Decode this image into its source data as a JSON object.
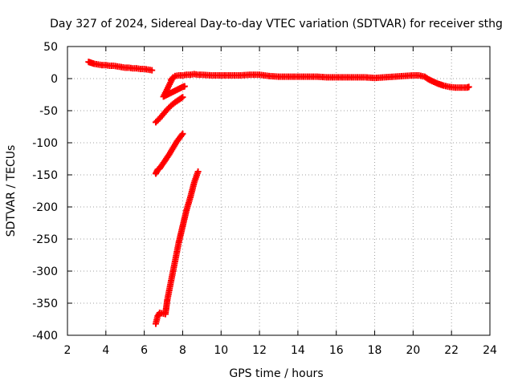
{
  "chart_data": {
    "type": "scatter",
    "title": "Day 327 of 2024, Sidereal Day-to-day VTEC variation (SDTVAR) for receiver sthg",
    "xlabel": "GPS time / hours",
    "ylabel": "SDTVAR / TECUs",
    "xlim": [
      2,
      24
    ],
    "ylim": [
      -400,
      50
    ],
    "xticks": [
      2,
      4,
      6,
      8,
      10,
      12,
      14,
      16,
      18,
      20,
      22,
      24
    ],
    "yticks": [
      50,
      0,
      -50,
      -100,
      -150,
      -200,
      -250,
      -300,
      -350,
      -400
    ],
    "grid": true,
    "marker": "plus",
    "color": "#ff0000",
    "series": [
      {
        "points": [
          [
            3.1,
            26
          ],
          [
            3.2,
            25
          ],
          [
            3.4,
            23
          ],
          [
            3.6,
            22
          ],
          [
            3.8,
            21
          ],
          [
            4.0,
            21
          ],
          [
            4.2,
            20
          ],
          [
            4.4,
            20
          ],
          [
            4.6,
            19
          ],
          [
            4.8,
            18
          ],
          [
            5.0,
            17
          ],
          [
            5.2,
            17
          ],
          [
            5.4,
            16
          ],
          [
            5.6,
            16
          ],
          [
            5.8,
            15
          ],
          [
            6.0,
            15
          ],
          [
            6.2,
            14
          ],
          [
            6.4,
            13
          ],
          [
            7.6,
            4
          ],
          [
            7.8,
            5
          ],
          [
            8.0,
            5
          ],
          [
            8.2,
            6
          ],
          [
            8.4,
            6
          ],
          [
            8.6,
            7
          ],
          [
            8.8,
            6
          ],
          [
            9.0,
            6
          ],
          [
            9.5,
            5
          ],
          [
            10.0,
            5
          ],
          [
            10.5,
            5
          ],
          [
            11.0,
            5
          ],
          [
            11.5,
            6
          ],
          [
            12.0,
            6
          ],
          [
            12.5,
            4
          ],
          [
            13.0,
            3
          ],
          [
            13.5,
            3
          ],
          [
            14.0,
            3
          ],
          [
            14.5,
            3
          ],
          [
            15.0,
            3
          ],
          [
            15.5,
            2
          ],
          [
            16.0,
            2
          ],
          [
            16.5,
            2
          ],
          [
            17.0,
            2
          ],
          [
            17.5,
            2
          ],
          [
            18.0,
            1
          ],
          [
            18.5,
            2
          ],
          [
            19.0,
            3
          ],
          [
            19.5,
            4
          ],
          [
            20.0,
            5
          ],
          [
            20.3,
            5
          ],
          [
            20.6,
            3
          ],
          [
            20.8,
            -1
          ],
          [
            21.0,
            -4
          ],
          [
            21.3,
            -8
          ],
          [
            21.6,
            -11
          ],
          [
            21.9,
            -13
          ],
          [
            22.2,
            -14
          ],
          [
            22.5,
            -14
          ],
          [
            22.8,
            -14
          ],
          [
            22.9,
            -13
          ],
          [
            7.4,
            -2
          ],
          [
            7.5,
            2
          ],
          [
            7.0,
            -28
          ],
          [
            7.2,
            -25
          ],
          [
            7.4,
            -22
          ],
          [
            7.6,
            -19
          ],
          [
            7.8,
            -16
          ],
          [
            8.0,
            -13
          ],
          [
            8.1,
            -12
          ],
          [
            6.6,
            -68
          ],
          [
            6.8,
            -62
          ],
          [
            7.0,
            -55
          ],
          [
            7.2,
            -48
          ],
          [
            7.4,
            -42
          ],
          [
            7.6,
            -37
          ],
          [
            7.8,
            -33
          ],
          [
            8.0,
            -29
          ],
          [
            6.6,
            -148
          ],
          [
            6.7,
            -142
          ],
          [
            6.8,
            -140
          ],
          [
            7.1,
            -127
          ],
          [
            7.3,
            -118
          ],
          [
            7.5,
            -108
          ],
          [
            7.7,
            -98
          ],
          [
            7.9,
            -90
          ],
          [
            8.0,
            -86
          ],
          [
            6.6,
            -382
          ],
          [
            6.7,
            -370
          ],
          [
            6.8,
            -365
          ],
          [
            7.1,
            -367
          ],
          [
            7.2,
            -345
          ],
          [
            7.4,
            -315
          ],
          [
            7.6,
            -285
          ],
          [
            7.8,
            -255
          ],
          [
            8.0,
            -230
          ],
          [
            8.2,
            -205
          ],
          [
            8.4,
            -185
          ],
          [
            8.6,
            -162
          ],
          [
            8.8,
            -145
          ]
        ]
      }
    ]
  }
}
